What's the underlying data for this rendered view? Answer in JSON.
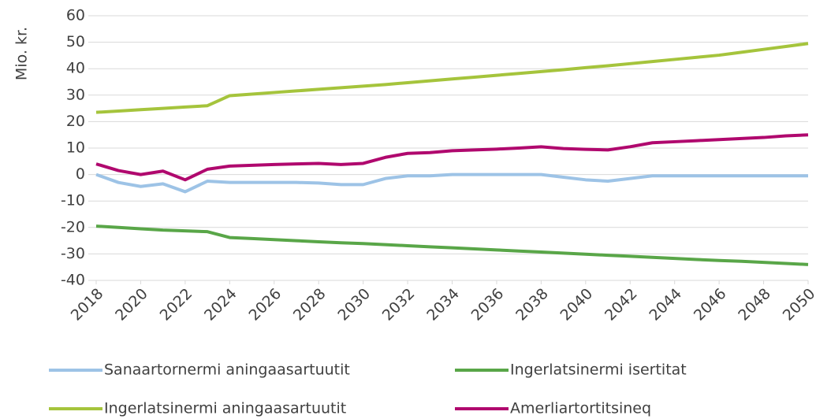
{
  "chart_data": {
    "type": "line",
    "y_label": "Mio. kr.",
    "x": [
      2018,
      2019,
      2020,
      2021,
      2022,
      2023,
      2024,
      2025,
      2026,
      2027,
      2028,
      2029,
      2030,
      2031,
      2032,
      2033,
      2034,
      2035,
      2036,
      2037,
      2038,
      2039,
      2040,
      2041,
      2042,
      2043,
      2044,
      2045,
      2046,
      2047,
      2048,
      2049,
      2050
    ],
    "xlim": [
      2018,
      2050
    ],
    "xticks": [
      2018,
      2020,
      2022,
      2024,
      2026,
      2028,
      2030,
      2032,
      2034,
      2036,
      2038,
      2040,
      2042,
      2044,
      2046,
      2048,
      2050
    ],
    "ylim": [
      -40,
      60
    ],
    "yticks": [
      -40,
      -30,
      -20,
      -10,
      0,
      10,
      20,
      30,
      40,
      50,
      60
    ],
    "grid": true,
    "legend": "bottom",
    "series": [
      {
        "name": "Sanaartornermi aningaasartuutit",
        "color": "#9dc3e6",
        "values": [
          0,
          -3,
          -4.5,
          -3.5,
          -6.5,
          -2.5,
          -3,
          -3,
          -3,
          -3,
          -3.2,
          -3.8,
          -3.8,
          -1.5,
          -0.5,
          -0.5,
          0,
          0,
          0,
          0,
          0,
          -1,
          -2,
          -2.5,
          -1.5,
          -0.5,
          -0.5,
          -0.5,
          -0.5,
          -0.5,
          -0.5,
          -0.5,
          -0.5
        ]
      },
      {
        "name": "Ingerlatsinermi isertitat",
        "color": "#59a648",
        "values": [
          -19.5,
          -20,
          -20.5,
          -21,
          -21.3,
          -21.6,
          -23.8,
          -24.2,
          -24.6,
          -25.0,
          -25.4,
          -25.8,
          -26.1,
          -26.5,
          -26.9,
          -27.3,
          -27.7,
          -28.1,
          -28.5,
          -28.9,
          -29.3,
          -29.7,
          -30.1,
          -30.5,
          -30.9,
          -31.3,
          -31.7,
          -32.1,
          -32.5,
          -32.8,
          -33.2,
          -33.6,
          -34.0
        ]
      },
      {
        "name": "Ingerlatsinermi aningaasartuutit",
        "color": "#a5c43c",
        "values": [
          23.5,
          24,
          24.5,
          25,
          25.5,
          26,
          29.8,
          30.4,
          31.0,
          31.6,
          32.2,
          32.8,
          33.4,
          34.0,
          34.7,
          35.4,
          36.1,
          36.8,
          37.5,
          38.2,
          38.9,
          39.6,
          40.4,
          41.1,
          41.9,
          42.7,
          43.5,
          44.3,
          45.1,
          46.2,
          47.3,
          48.4,
          49.5
        ]
      },
      {
        "name": "Amerliartortitsineq",
        "color": "#b0086e",
        "values": [
          4,
          1.5,
          0,
          1.3,
          -2,
          2,
          3.2,
          3.5,
          3.8,
          4,
          4.2,
          3.8,
          4.2,
          6.5,
          8,
          8.3,
          9,
          9.3,
          9.6,
          10,
          10.5,
          9.8,
          9.5,
          9.3,
          10.5,
          12,
          12.4,
          12.8,
          13.2,
          13.6,
          14,
          14.6,
          15
        ]
      }
    ]
  }
}
